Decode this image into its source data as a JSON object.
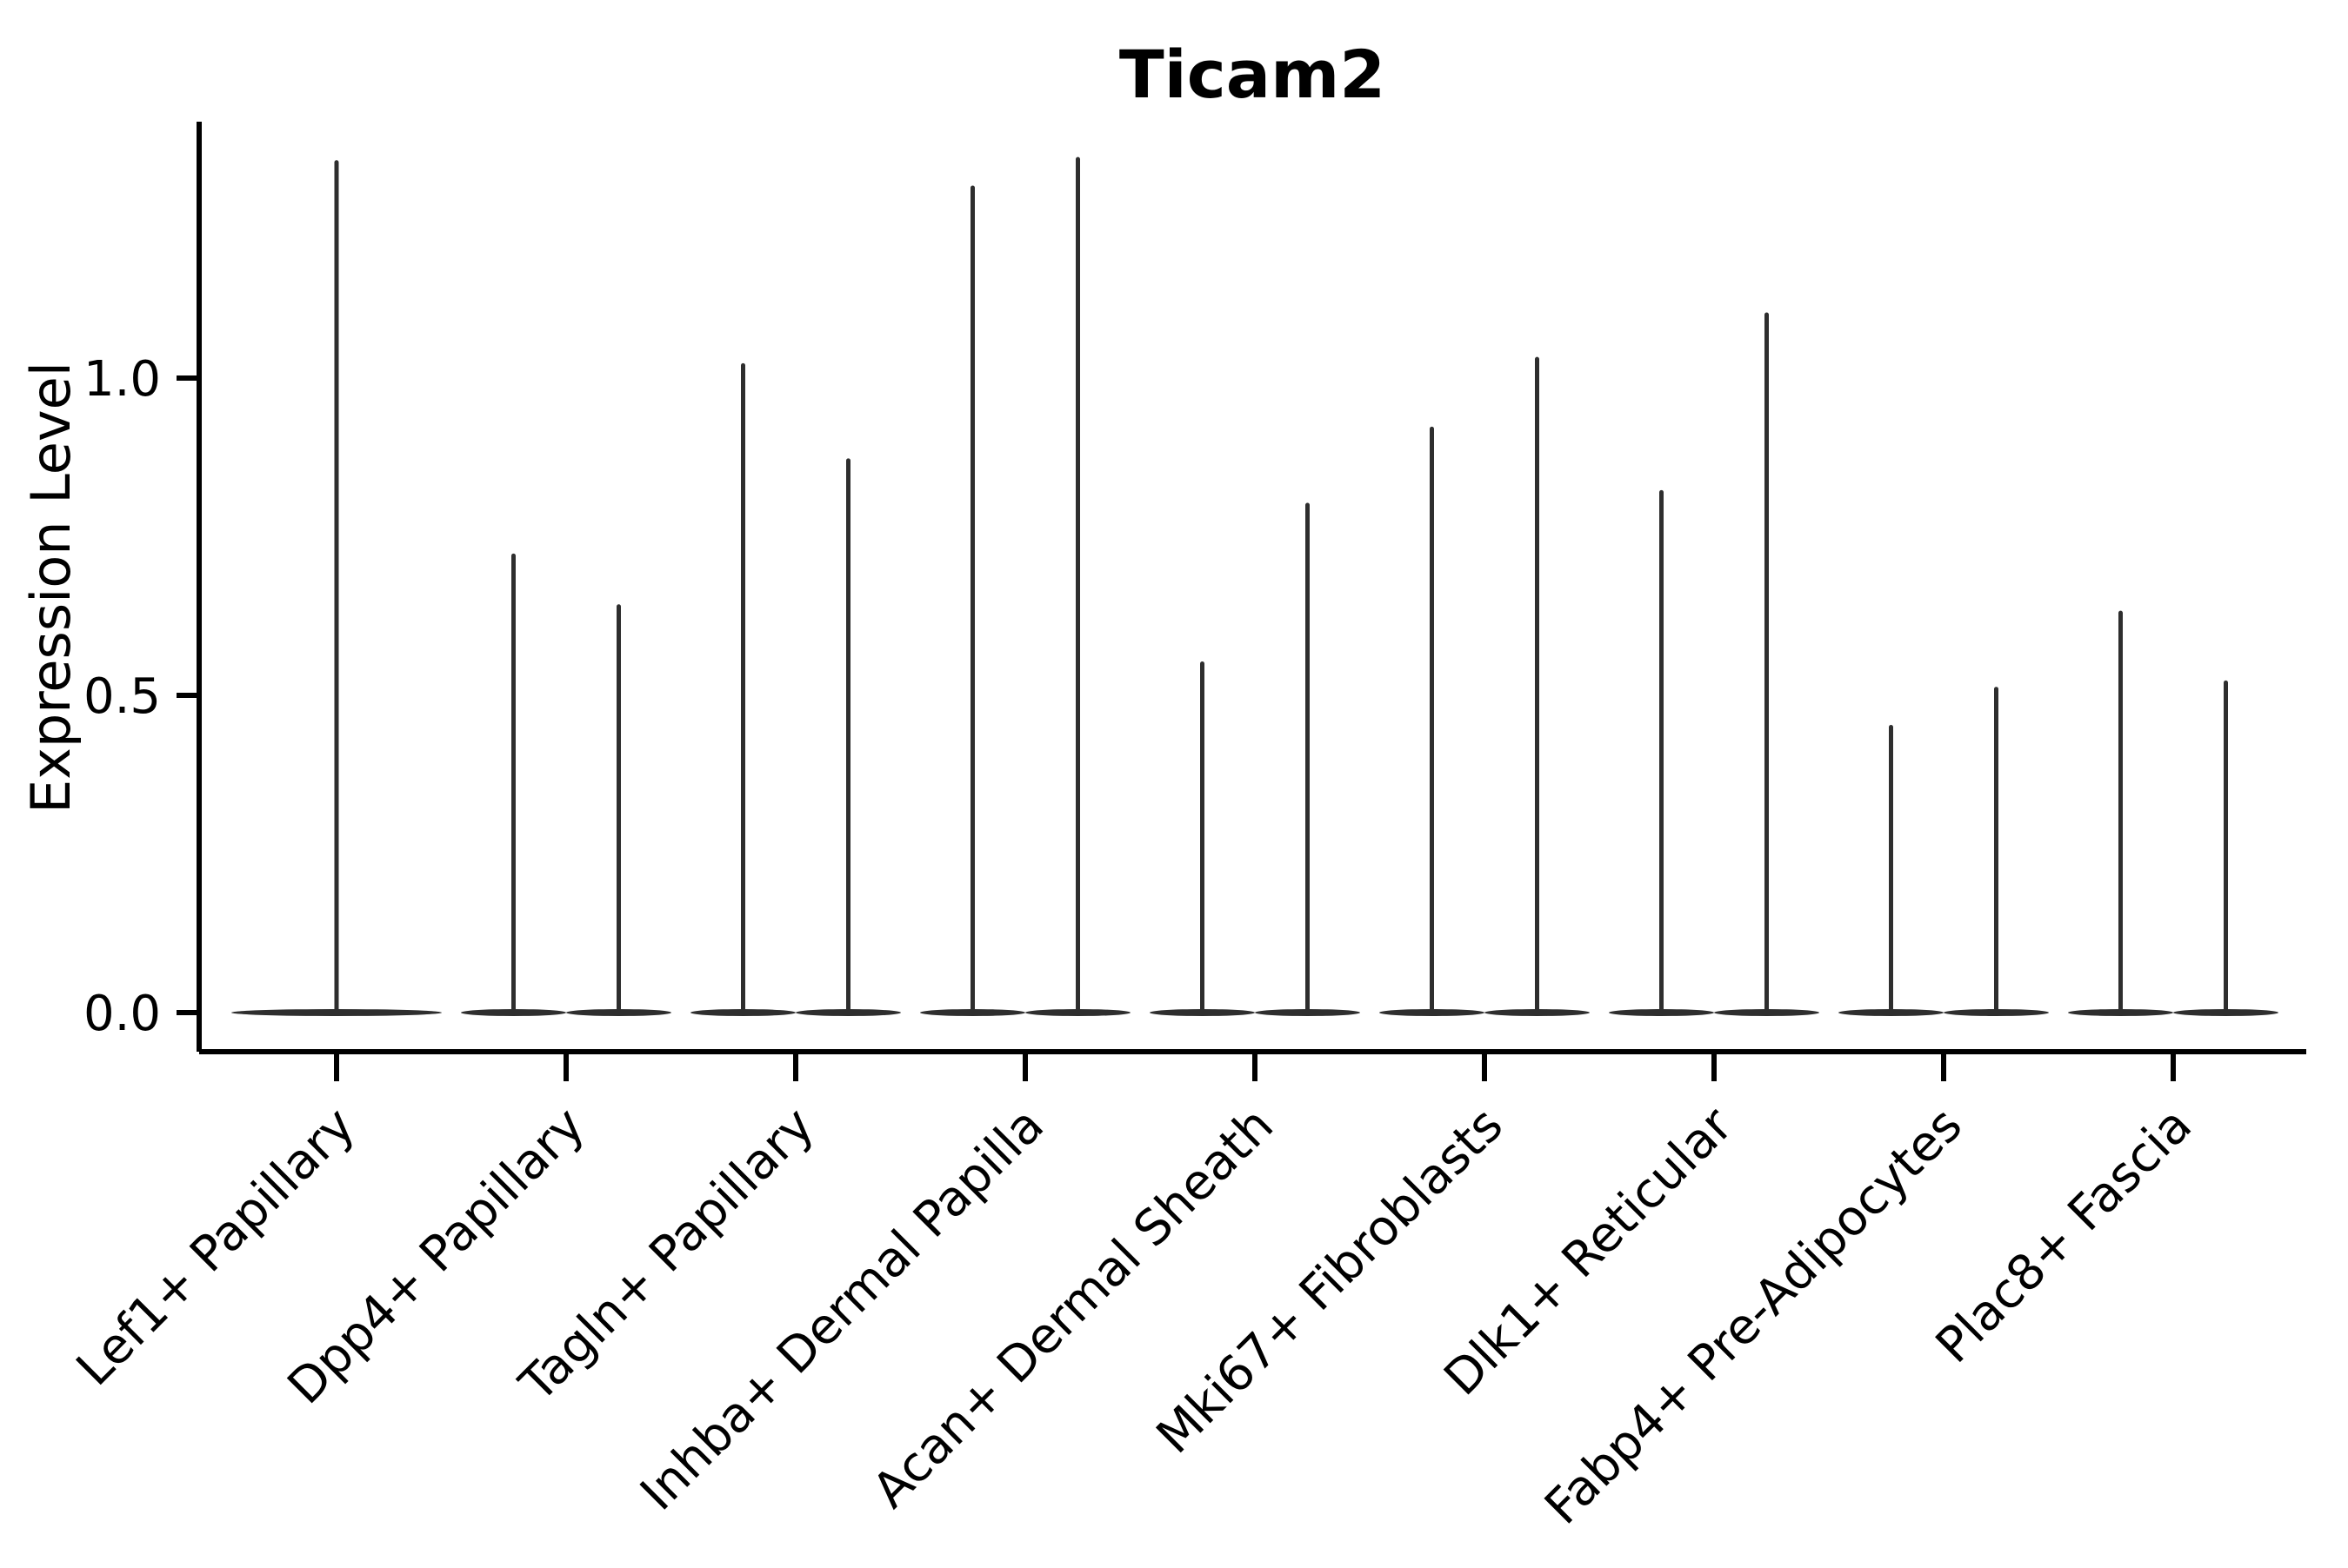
{
  "chart_data": {
    "type": "violin",
    "title": "Ticam2",
    "xlabel": "",
    "ylabel": "Expression Level",
    "categories": [
      "Lef1+ Papillary",
      "Dpp4+ Papillary",
      "Tagln+ Papillary",
      "Inhba+ Dermal Papilla",
      "Acan+ Dermal Sheath",
      "Mki67+ Fibroblasts",
      "Dlk1+ Reticular",
      "Fabp4+ Pre-Adipocytes",
      "Plac8+ Fascia"
    ],
    "violins": [
      {
        "category": "Lef1+ Papillary",
        "group_maxima": [
          1.34
        ],
        "baseline_value": 0.0
      },
      {
        "category": "Dpp4+ Papillary",
        "group_maxima": [
          0.72,
          0.64
        ],
        "baseline_value": 0.0
      },
      {
        "category": "Tagln+ Papillary",
        "group_maxima": [
          1.02,
          0.87
        ],
        "baseline_value": 0.0
      },
      {
        "category": "Inhba+ Dermal Papilla",
        "group_maxima": [
          1.3,
          1.345
        ],
        "baseline_value": 0.0
      },
      {
        "category": "Acan+ Dermal Sheath",
        "group_maxima": [
          0.55,
          0.8
        ],
        "baseline_value": 0.0
      },
      {
        "category": "Mki67+ Fibroblasts",
        "group_maxima": [
          0.92,
          1.03
        ],
        "baseline_value": 0.0
      },
      {
        "category": "Dlk1+ Reticular",
        "group_maxima": [
          0.82,
          1.1
        ],
        "baseline_value": 0.0
      },
      {
        "category": "Fabp4+ Pre-Adipocytes",
        "group_maxima": [
          0.45,
          0.51
        ],
        "baseline_value": 0.0
      },
      {
        "category": "Plac8+ Fascia",
        "group_maxima": [
          0.63,
          0.52
        ],
        "baseline_value": 0.0
      }
    ],
    "yticks": [
      {
        "label": "0.0",
        "value": 0.0
      },
      {
        "label": "0.5",
        "value": 0.5
      },
      {
        "label": "1.0",
        "value": 1.0
      }
    ],
    "ylim": [
      -0.06,
      1.4
    ],
    "grid": false,
    "legend": "none",
    "x_tick_rotation_deg": 45,
    "violin_color": "#2e2e2e",
    "axis_color": "#000000"
  }
}
